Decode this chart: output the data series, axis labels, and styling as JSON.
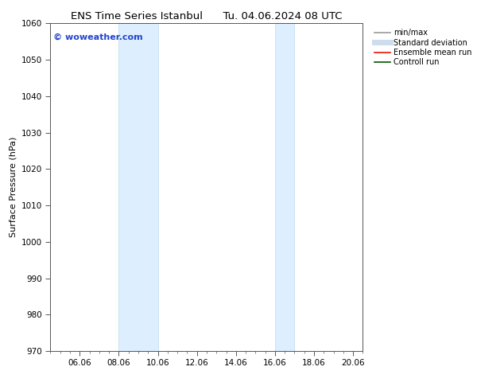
{
  "title_left": "ENS Time Series Istanbul",
  "title_right": "Tu. 04.06.2024 08 UTC",
  "ylabel": "Surface Pressure (hPa)",
  "ylim": [
    970,
    1060
  ],
  "yticks": [
    970,
    980,
    990,
    1000,
    1010,
    1020,
    1030,
    1040,
    1050,
    1060
  ],
  "xlim_start": 4.5,
  "xlim_end": 20.5,
  "xtick_labels": [
    "06.06",
    "08.06",
    "10.06",
    "12.06",
    "14.06",
    "16.06",
    "18.06",
    "20.06"
  ],
  "xtick_positions": [
    6,
    8,
    10,
    12,
    14,
    16,
    18,
    20
  ],
  "shaded_bands": [
    {
      "x_start": 8.0,
      "x_end": 10.0
    },
    {
      "x_start": 16.0,
      "x_end": 17.0
    }
  ],
  "band_color": "#ddeeff",
  "band_edge_color": "#bbddee",
  "watermark": "© woweather.com",
  "watermark_color": "#2244cc",
  "legend_items": [
    {
      "label": "min/max",
      "color": "#999999",
      "lw": 1.2
    },
    {
      "label": "Standard deviation",
      "color": "#ccddee",
      "lw": 5
    },
    {
      "label": "Ensemble mean run",
      "color": "#ee1100",
      "lw": 1.2
    },
    {
      "label": "Controll run",
      "color": "#005500",
      "lw": 1.2
    }
  ],
  "bg_color": "#ffffff",
  "spine_color": "#555555",
  "tick_color": "#555555",
  "title_fontsize": 9.5,
  "label_fontsize": 8,
  "tick_fontsize": 7.5,
  "watermark_fontsize": 8,
  "legend_fontsize": 7
}
